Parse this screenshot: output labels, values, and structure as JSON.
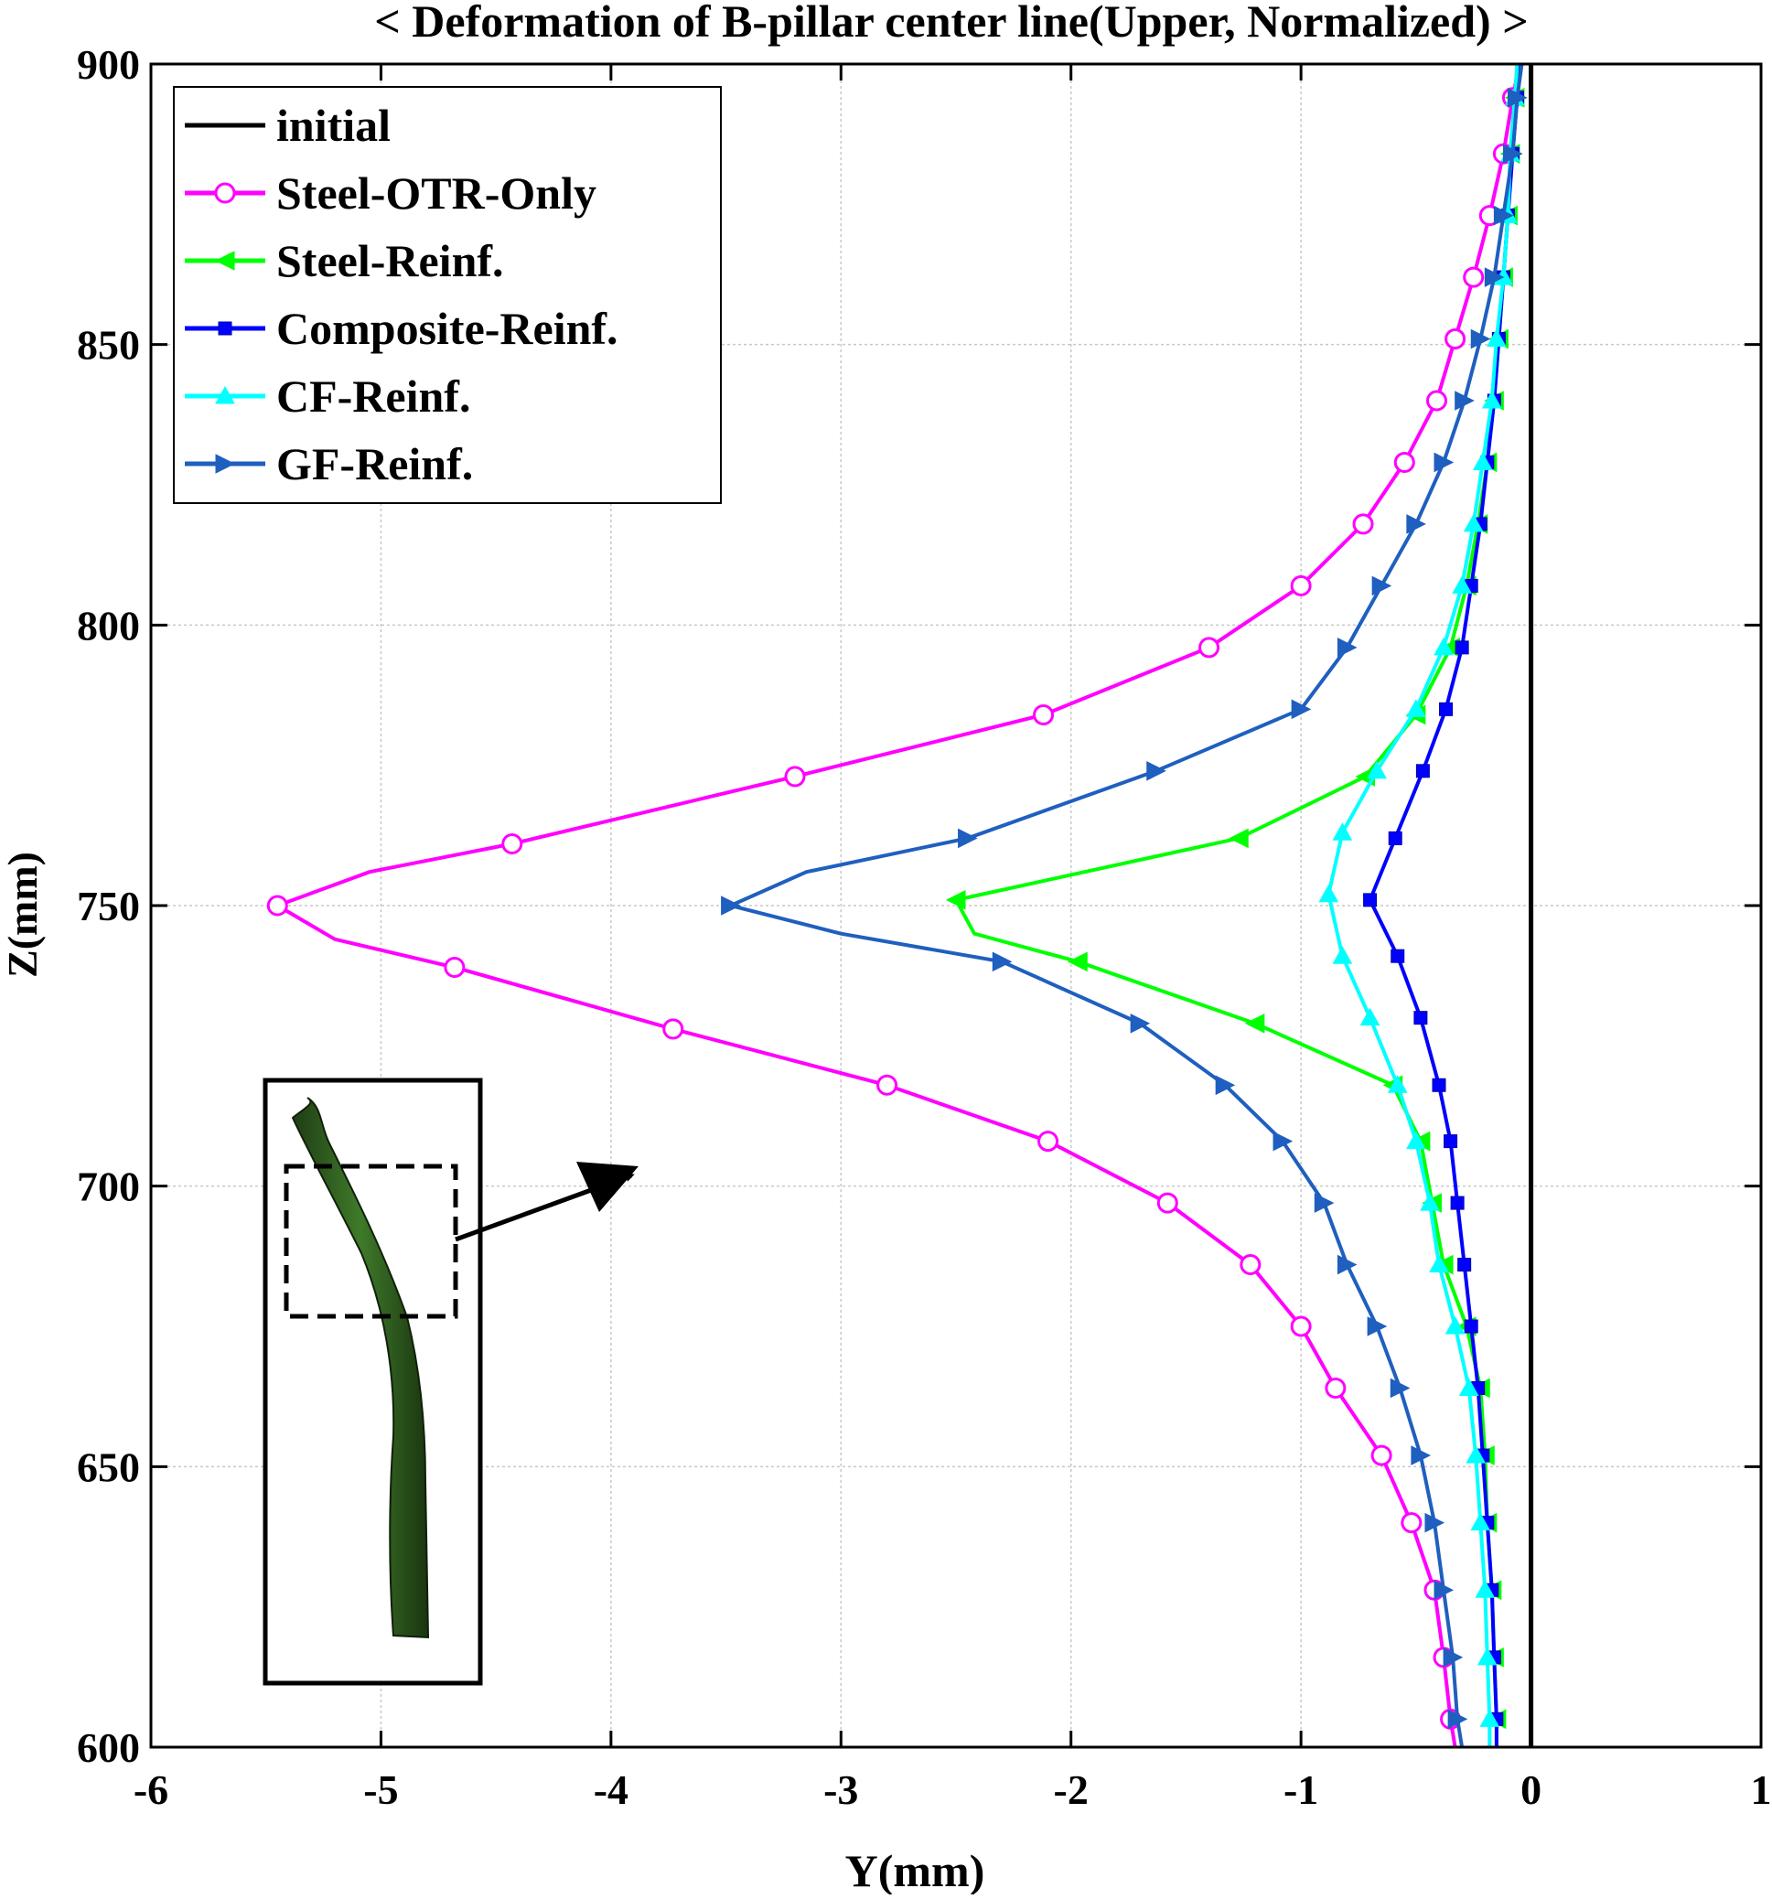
{
  "chart_data": {
    "type": "line",
    "title": "< Deformation of B-pillar center line(Upper, Normalized) >",
    "xlabel": "Y(mm)",
    "ylabel": "Z(mm)",
    "xlim": [
      -6,
      1
    ],
    "ylim": [
      600,
      900
    ],
    "xticks": [
      -6,
      -5,
      -4,
      -3,
      -2,
      -1,
      0,
      1
    ],
    "yticks": [
      600,
      650,
      700,
      750,
      800,
      850,
      900
    ],
    "grid": true,
    "legend_position": "top-left",
    "series": [
      {
        "name": "initial",
        "color": "#000000",
        "marker": "none",
        "points": [
          [
            0,
            600
          ],
          [
            0,
            900
          ]
        ]
      },
      {
        "name": "Steel-OTR-Only",
        "color": "#ff00ff",
        "marker": "circle",
        "points": [
          [
            -0.33,
            600
          ],
          [
            -0.35,
            605
          ],
          [
            -0.38,
            616
          ],
          [
            -0.42,
            628
          ],
          [
            -0.52,
            640
          ],
          [
            -0.65,
            652
          ],
          [
            -0.85,
            664
          ],
          [
            -1.0,
            675
          ],
          [
            -1.22,
            686
          ],
          [
            -1.58,
            697
          ],
          [
            -2.1,
            708
          ],
          [
            -2.8,
            718
          ],
          [
            -3.73,
            728
          ],
          [
            -4.68,
            739
          ],
          [
            -5.2,
            744
          ],
          [
            -5.45,
            750
          ],
          [
            -5.05,
            756
          ],
          [
            -4.43,
            761
          ],
          [
            -3.2,
            773
          ],
          [
            -2.12,
            784
          ],
          [
            -1.4,
            796
          ],
          [
            -1.0,
            807
          ],
          [
            -0.73,
            818
          ],
          [
            -0.55,
            829
          ],
          [
            -0.41,
            840
          ],
          [
            -0.33,
            851
          ],
          [
            -0.25,
            862
          ],
          [
            -0.18,
            873
          ],
          [
            -0.12,
            884
          ],
          [
            -0.08,
            894
          ],
          [
            -0.05,
            900
          ]
        ],
        "markers_at": [
          605,
          616,
          628,
          640,
          652,
          664,
          675,
          686,
          697,
          708,
          718,
          728,
          739,
          750,
          761,
          773,
          784,
          796,
          807,
          818,
          829,
          840,
          851,
          862,
          873,
          884,
          894
        ]
      },
      {
        "name": "Steel-Reinf.",
        "color": "#00ff00",
        "marker": "triangle-left",
        "points": [
          [
            -0.15,
            600
          ],
          [
            -0.15,
            605
          ],
          [
            -0.16,
            616
          ],
          [
            -0.17,
            628
          ],
          [
            -0.19,
            640
          ],
          [
            -0.2,
            652
          ],
          [
            -0.22,
            664
          ],
          [
            -0.28,
            675
          ],
          [
            -0.38,
            686
          ],
          [
            -0.43,
            697
          ],
          [
            -0.48,
            708
          ],
          [
            -0.6,
            718
          ],
          [
            -1.2,
            729
          ],
          [
            -1.97,
            740
          ],
          [
            -2.42,
            745
          ],
          [
            -2.5,
            751
          ],
          [
            -1.27,
            762
          ],
          [
            -0.72,
            773
          ],
          [
            -0.5,
            784
          ],
          [
            -0.35,
            796
          ],
          [
            -0.28,
            807
          ],
          [
            -0.23,
            818
          ],
          [
            -0.19,
            829
          ],
          [
            -0.16,
            840
          ],
          [
            -0.14,
            851
          ],
          [
            -0.12,
            862
          ],
          [
            -0.1,
            873
          ],
          [
            -0.09,
            884
          ],
          [
            -0.07,
            894
          ],
          [
            -0.06,
            900
          ]
        ],
        "markers_at": [
          605,
          616,
          628,
          640,
          652,
          664,
          675,
          686,
          697,
          708,
          718,
          729,
          740,
          751,
          762,
          773,
          784,
          796,
          807,
          818,
          829,
          840,
          851,
          862,
          873,
          884,
          894
        ]
      },
      {
        "name": "Composite-Reinf.",
        "color": "#0000ff",
        "marker": "square",
        "points": [
          [
            -0.15,
            600
          ],
          [
            -0.15,
            605
          ],
          [
            -0.16,
            616
          ],
          [
            -0.17,
            628
          ],
          [
            -0.19,
            640
          ],
          [
            -0.21,
            652
          ],
          [
            -0.23,
            664
          ],
          [
            -0.26,
            675
          ],
          [
            -0.29,
            686
          ],
          [
            -0.32,
            697
          ],
          [
            -0.35,
            708
          ],
          [
            -0.4,
            718
          ],
          [
            -0.48,
            730
          ],
          [
            -0.58,
            741
          ],
          [
            -0.7,
            751
          ],
          [
            -0.59,
            762
          ],
          [
            -0.47,
            774
          ],
          [
            -0.37,
            785
          ],
          [
            -0.3,
            796
          ],
          [
            -0.26,
            807
          ],
          [
            -0.22,
            818
          ],
          [
            -0.19,
            829
          ],
          [
            -0.16,
            840
          ],
          [
            -0.14,
            851
          ],
          [
            -0.12,
            862
          ],
          [
            -0.1,
            873
          ],
          [
            -0.08,
            884
          ],
          [
            -0.06,
            894
          ],
          [
            -0.05,
            900
          ]
        ],
        "markers_at": [
          605,
          616,
          628,
          640,
          652,
          664,
          675,
          686,
          697,
          708,
          718,
          730,
          741,
          751,
          762,
          774,
          785,
          796,
          807,
          818,
          829,
          840,
          851,
          862,
          873,
          884,
          894
        ]
      },
      {
        "name": "CF-Reinf.",
        "color": "#00ffff",
        "marker": "triangle-up",
        "points": [
          [
            -0.18,
            600
          ],
          [
            -0.18,
            605
          ],
          [
            -0.19,
            616
          ],
          [
            -0.2,
            628
          ],
          [
            -0.22,
            640
          ],
          [
            -0.24,
            652
          ],
          [
            -0.27,
            664
          ],
          [
            -0.33,
            675
          ],
          [
            -0.4,
            686
          ],
          [
            -0.44,
            697
          ],
          [
            -0.5,
            708
          ],
          [
            -0.58,
            718
          ],
          [
            -0.7,
            730
          ],
          [
            -0.82,
            741
          ],
          [
            -0.88,
            752
          ],
          [
            -0.82,
            763
          ],
          [
            -0.67,
            774
          ],
          [
            -0.5,
            785
          ],
          [
            -0.38,
            796
          ],
          [
            -0.3,
            807
          ],
          [
            -0.25,
            818
          ],
          [
            -0.21,
            829
          ],
          [
            -0.17,
            840
          ],
          [
            -0.15,
            851
          ],
          [
            -0.12,
            862
          ],
          [
            -0.1,
            873
          ],
          [
            -0.09,
            884
          ],
          [
            -0.07,
            894
          ],
          [
            -0.06,
            900
          ]
        ],
        "markers_at": [
          605,
          616,
          628,
          640,
          652,
          664,
          675,
          686,
          697,
          708,
          718,
          730,
          741,
          752,
          763,
          774,
          785,
          796,
          807,
          818,
          829,
          840,
          851,
          862,
          873,
          884,
          894
        ]
      },
      {
        "name": "GF-Reinf.",
        "color": "#1f5fbf",
        "marker": "triangle-right",
        "points": [
          [
            -0.3,
            600
          ],
          [
            -0.32,
            605
          ],
          [
            -0.34,
            616
          ],
          [
            -0.38,
            628
          ],
          [
            -0.42,
            640
          ],
          [
            -0.48,
            652
          ],
          [
            -0.57,
            664
          ],
          [
            -0.67,
            675
          ],
          [
            -0.8,
            686
          ],
          [
            -0.9,
            697
          ],
          [
            -1.08,
            708
          ],
          [
            -1.33,
            718
          ],
          [
            -1.7,
            729
          ],
          [
            -2.3,
            740
          ],
          [
            -3.0,
            745
          ],
          [
            -3.48,
            750
          ],
          [
            -3.15,
            756
          ],
          [
            -2.45,
            762
          ],
          [
            -1.63,
            774
          ],
          [
            -1.0,
            785
          ],
          [
            -0.8,
            796
          ],
          [
            -0.65,
            807
          ],
          [
            -0.5,
            818
          ],
          [
            -0.38,
            829
          ],
          [
            -0.29,
            840
          ],
          [
            -0.22,
            851
          ],
          [
            -0.16,
            862
          ],
          [
            -0.12,
            873
          ],
          [
            -0.08,
            884
          ],
          [
            -0.06,
            894
          ],
          [
            -0.04,
            900
          ]
        ],
        "markers_at": [
          605,
          616,
          628,
          640,
          652,
          664,
          675,
          686,
          697,
          708,
          718,
          729,
          740,
          750,
          762,
          774,
          785,
          796,
          807,
          818,
          829,
          840,
          851,
          862,
          873,
          884,
          894
        ]
      }
    ]
  }
}
